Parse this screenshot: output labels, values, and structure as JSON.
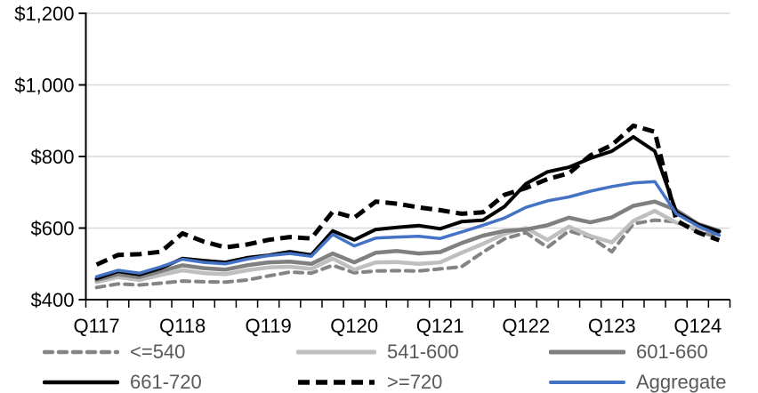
{
  "chart_data": {
    "type": "line",
    "title": "",
    "xlabel": "",
    "ylabel": "",
    "ylim": [
      400,
      1200
    ],
    "grid": "horizontal",
    "legend_position": "bottom",
    "y_ticks": [
      {
        "v": 1200,
        "label": "$1,200"
      },
      {
        "v": 1000,
        "label": "$1,000"
      },
      {
        "v": 800,
        "label": "$800"
      },
      {
        "v": 600,
        "label": "$600"
      },
      {
        "v": 400,
        "label": "$400"
      }
    ],
    "x": [
      "Q117",
      "Q217",
      "Q317",
      "Q417",
      "Q118",
      "Q218",
      "Q318",
      "Q418",
      "Q119",
      "Q219",
      "Q319",
      "Q419",
      "Q120",
      "Q220",
      "Q320",
      "Q420",
      "Q121",
      "Q221",
      "Q321",
      "Q421",
      "Q122",
      "Q222",
      "Q322",
      "Q422",
      "Q123",
      "Q223",
      "Q323",
      "Q423",
      "Q124",
      "Q224"
    ],
    "x_tick_labels": [
      "Q117",
      "Q118",
      "Q119",
      "Q120",
      "Q121",
      "Q122",
      "Q123",
      "Q124"
    ],
    "x_label_every": 4,
    "series": [
      {
        "id": "le-540",
        "name": "<=540",
        "color": "#848484",
        "width": 4,
        "dash": "9 7",
        "cap": "round",
        "values": [
          434,
          444,
          441,
          446,
          452,
          450,
          449,
          455,
          466,
          477,
          474,
          496,
          475,
          480,
          481,
          480,
          486,
          492,
          533,
          570,
          587,
          546,
          592,
          575,
          534,
          612,
          622,
          618,
          592,
          572
        ]
      },
      {
        "id": "541-600",
        "name": "541-600",
        "color": "#bfbfbf",
        "width": 4.5,
        "dash": "",
        "cap": "round",
        "values": [
          449,
          463,
          455,
          469,
          482,
          474,
          471,
          482,
          490,
          492,
          486,
          515,
          484,
          504,
          505,
          500,
          504,
          531,
          556,
          584,
          600,
          567,
          604,
          578,
          560,
          620,
          648,
          615,
          598,
          590
        ]
      },
      {
        "id": "601-660",
        "name": "601-660",
        "color": "#808080",
        "width": 4.5,
        "dash": "",
        "cap": "round",
        "values": [
          455,
          471,
          463,
          480,
          496,
          488,
          484,
          496,
          504,
          506,
          500,
          529,
          504,
          531,
          536,
          529,
          533,
          558,
          579,
          592,
          596,
          608,
          629,
          616,
          630,
          662,
          674,
          650,
          612,
          592
        ]
      },
      {
        "id": "661-720",
        "name": "661-720",
        "color": "#000000",
        "width": 4,
        "dash": "",
        "cap": "round",
        "values": [
          459,
          479,
          470,
          488,
          515,
          509,
          504,
          517,
          524,
          534,
          525,
          592,
          567,
          596,
          602,
          607,
          598,
          618,
          622,
          660,
          724,
          757,
          770,
          795,
          815,
          855,
          815,
          645,
          610,
          590
        ]
      },
      {
        "id": "ge-720",
        "name": ">=720",
        "color": "#000000",
        "width": 5,
        "dash": "13 7",
        "cap": "butt",
        "values": [
          498,
          525,
          527,
          534,
          585,
          562,
          546,
          554,
          567,
          575,
          571,
          646,
          629,
          674,
          668,
          658,
          650,
          640,
          644,
          693,
          712,
          737,
          753,
          803,
          832,
          886,
          869,
          621,
          588,
          566
        ]
      },
      {
        "id": "aggregate",
        "name": "Aggregate",
        "color": "#4472c4",
        "width": 3.5,
        "dash": "",
        "cap": "round",
        "values": [
          464,
          482,
          474,
          492,
          513,
          504,
          500,
          513,
          523,
          529,
          521,
          582,
          550,
          572,
          575,
          577,
          571,
          589,
          608,
          628,
          658,
          676,
          687,
          703,
          716,
          726,
          730,
          640,
          606,
          580
        ]
      }
    ],
    "axis_color": "#000000",
    "gridline_color": "#d9d9d9",
    "legend_text_color": "#595959"
  },
  "legend": {
    "columns": [
      {
        "rows": [
          {
            "series": 0
          },
          {
            "series": 3
          }
        ]
      },
      {
        "rows": [
          {
            "series": 1
          },
          {
            "series": 4
          }
        ]
      },
      {
        "rows": [
          {
            "series": 2
          },
          {
            "series": 5
          }
        ]
      }
    ]
  }
}
